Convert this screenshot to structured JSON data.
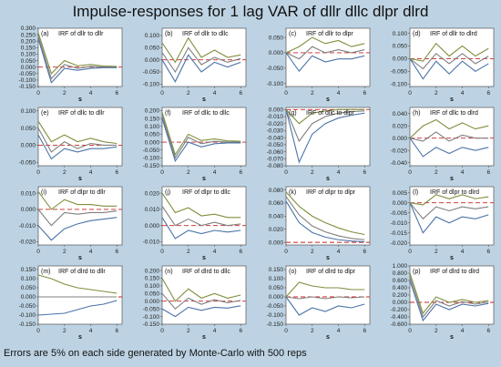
{
  "title": "Impulse-responses for 1 lag VAR of dllr dllc dlpr dlrd",
  "footnote": "Errors are 5% on each side generated by Monte-Carlo with 500 reps",
  "colors": {
    "background": "#bdd3e3",
    "plot_bg": "#ffffff",
    "irf": "#7f7f7f",
    "lower": "#4a73a8",
    "upper": "#7f8f3c",
    "zero": "#cc2222",
    "frame": "#555555"
  },
  "chart_data": [
    {
      "type": "line",
      "letter": "(a)",
      "title": "IRF of dllr to dllr",
      "xlabel": "s",
      "x": [
        0,
        1,
        2,
        3,
        4,
        5,
        6
      ],
      "yticks": [
        "0.300",
        "0.250",
        "0.200",
        "0.150",
        "0.100",
        "0.050",
        "0.000",
        "-0.050",
        "-0.100",
        "-0.150"
      ],
      "ylim": [
        -0.15,
        0.3
      ],
      "xticks": [
        "0",
        "2",
        "4",
        "6"
      ],
      "series": [
        {
          "name": "irf",
          "values": [
            0.24,
            -0.09,
            0.02,
            -0.01,
            0.005,
            0.0,
            0.0
          ]
        },
        {
          "name": "lower",
          "values": [
            0.22,
            -0.12,
            -0.01,
            -0.025,
            -0.01,
            -0.005,
            -0.005
          ]
        },
        {
          "name": "upper",
          "values": [
            0.265,
            -0.05,
            0.05,
            0.01,
            0.02,
            0.008,
            0.005
          ]
        }
      ]
    },
    {
      "type": "line",
      "letter": "(b)",
      "title": "IRF of dllr to dllc",
      "xlabel": "s",
      "x": [
        0,
        1,
        2,
        3,
        4,
        5,
        6
      ],
      "yticks": [
        "0.100",
        "0.050",
        "0.000",
        "-0.050",
        "-0.100"
      ],
      "ylim": [
        -0.11,
        0.13
      ],
      "xticks": [
        "0",
        "2",
        "4",
        "6"
      ],
      "series": [
        {
          "name": "irf",
          "values": [
            0.03,
            -0.05,
            0.05,
            -0.02,
            0.01,
            -0.01,
            0.005
          ]
        },
        {
          "name": "lower",
          "values": [
            0.0,
            -0.09,
            0.02,
            -0.05,
            -0.01,
            -0.03,
            -0.01
          ]
        },
        {
          "name": "upper",
          "values": [
            0.07,
            -0.01,
            0.09,
            0.01,
            0.04,
            0.01,
            0.02
          ]
        }
      ]
    },
    {
      "type": "line",
      "letter": "(c)",
      "title": "IRF of dllr to dlpr",
      "xlabel": "s",
      "x": [
        0,
        1,
        2,
        3,
        4,
        5,
        6
      ],
      "yticks": [
        "0.050",
        "0.000",
        "-0.050",
        "-0.100"
      ],
      "ylim": [
        -0.11,
        0.08
      ],
      "xticks": [
        "0",
        "2",
        "4",
        "6"
      ],
      "series": [
        {
          "name": "irf",
          "values": [
            0.0,
            -0.02,
            0.02,
            0.0,
            0.01,
            0.0,
            0.01
          ]
        },
        {
          "name": "lower",
          "values": [
            0.0,
            -0.06,
            -0.01,
            -0.03,
            -0.02,
            -0.02,
            -0.01
          ]
        },
        {
          "name": "upper",
          "values": [
            0.0,
            0.02,
            0.05,
            0.03,
            0.04,
            0.02,
            0.03
          ]
        }
      ]
    },
    {
      "type": "line",
      "letter": "(d)",
      "title": "IRF of dllr to dlrd",
      "xlabel": "s",
      "x": [
        0,
        1,
        2,
        3,
        4,
        5,
        6
      ],
      "yticks": [
        "0.100",
        "0.050",
        "0.000",
        "-0.050",
        "-0.100"
      ],
      "ylim": [
        -0.11,
        0.12
      ],
      "xticks": [
        "0",
        "2",
        "4",
        "6"
      ],
      "series": [
        {
          "name": "irf",
          "values": [
            0.0,
            -0.04,
            0.02,
            -0.02,
            0.02,
            -0.02,
            0.01
          ]
        },
        {
          "name": "lower",
          "values": [
            0.0,
            -0.08,
            -0.01,
            -0.06,
            -0.01,
            -0.05,
            -0.02
          ]
        },
        {
          "name": "upper",
          "values": [
            0.0,
            -0.01,
            0.06,
            0.01,
            0.05,
            0.01,
            0.04
          ]
        }
      ]
    },
    {
      "type": "line",
      "letter": "(e)",
      "title": "IRF of dllc to dllr",
      "xlabel": "s",
      "x": [
        0,
        1,
        2,
        3,
        4,
        5,
        6
      ],
      "yticks": [
        "0.100",
        "0.050",
        "0.000",
        "-0.050"
      ],
      "ylim": [
        -0.06,
        0.11
      ],
      "xticks": [
        "0",
        "2",
        "4",
        "6"
      ],
      "series": [
        {
          "name": "irf",
          "values": [
            0.05,
            -0.02,
            0.01,
            -0.01,
            0.005,
            0.0,
            0.0
          ]
        },
        {
          "name": "lower",
          "values": [
            0.03,
            -0.04,
            -0.01,
            -0.02,
            -0.01,
            -0.01,
            -0.005
          ]
        },
        {
          "name": "upper",
          "values": [
            0.07,
            0.01,
            0.03,
            0.01,
            0.02,
            0.01,
            0.005
          ]
        }
      ]
    },
    {
      "type": "line",
      "letter": "(f)",
      "title": "IRF of dllc to dllc",
      "xlabel": "s",
      "x": [
        0,
        1,
        2,
        3,
        4,
        5,
        6
      ],
      "yticks": [
        "0.200",
        "0.150",
        "0.100",
        "0.050",
        "0.000",
        "-0.050",
        "-0.100",
        "-0.150"
      ],
      "ylim": [
        -0.15,
        0.22
      ],
      "xticks": [
        "0",
        "2",
        "4",
        "6"
      ],
      "series": [
        {
          "name": "irf",
          "values": [
            0.17,
            -0.1,
            0.03,
            -0.01,
            0.005,
            0.0,
            0.0
          ]
        },
        {
          "name": "lower",
          "values": [
            0.15,
            -0.12,
            0.0,
            -0.03,
            -0.01,
            -0.005,
            -0.005
          ]
        },
        {
          "name": "upper",
          "values": [
            0.19,
            -0.08,
            0.05,
            0.01,
            0.02,
            0.008,
            0.005
          ]
        }
      ]
    },
    {
      "type": "line",
      "letter": "(g)",
      "title": "IRF of dllc to dlpr",
      "xlabel": "s",
      "x": [
        0,
        1,
        2,
        3,
        4,
        5,
        6
      ],
      "yticks": [
        "0.000",
        "-0.010",
        "-0.020",
        "-0.030",
        "-0.040",
        "-0.050",
        "-0.060",
        "-0.070",
        "-0.080"
      ],
      "ylim": [
        -0.08,
        0.003
      ],
      "xticks": [
        "0",
        "2",
        "4",
        "6"
      ],
      "series": [
        {
          "name": "irf",
          "values": [
            0.0,
            -0.045,
            -0.02,
            -0.01,
            -0.005,
            -0.003,
            -0.002
          ]
        },
        {
          "name": "lower",
          "values": [
            0.0,
            -0.075,
            -0.035,
            -0.02,
            -0.012,
            -0.008,
            -0.005
          ]
        },
        {
          "name": "upper",
          "values": [
            0.0,
            -0.02,
            -0.005,
            -0.002,
            0.0,
            0.0,
            0.0
          ]
        }
      ]
    },
    {
      "type": "line",
      "letter": "(h)",
      "title": "IRF of dllc to dlrd",
      "xlabel": "s",
      "x": [
        0,
        1,
        2,
        3,
        4,
        5,
        6
      ],
      "yticks": [
        "0.040",
        "0.020",
        "0.000",
        "-0.020",
        "-0.040"
      ],
      "ylim": [
        -0.045,
        0.05
      ],
      "xticks": [
        "0",
        "2",
        "4",
        "6"
      ],
      "series": [
        {
          "name": "irf",
          "values": [
            0.0,
            -0.005,
            0.01,
            -0.005,
            0.005,
            0.0,
            0.0
          ]
        },
        {
          "name": "lower",
          "values": [
            0.0,
            -0.03,
            -0.015,
            -0.025,
            -0.015,
            -0.02,
            -0.015
          ]
        },
        {
          "name": "upper",
          "values": [
            0.0,
            0.02,
            0.03,
            0.015,
            0.025,
            0.015,
            0.02
          ]
        }
      ]
    },
    {
      "type": "line",
      "letter": "(i)",
      "title": "IRF of dlpr to dllr",
      "xlabel": "s",
      "x": [
        0,
        1,
        2,
        3,
        4,
        5,
        6
      ],
      "yticks": [
        "0.010",
        "0.000",
        "-0.010",
        "-0.020"
      ],
      "ylim": [
        -0.022,
        0.014
      ],
      "xticks": [
        "0",
        "2",
        "4",
        "6"
      ],
      "series": [
        {
          "name": "irf",
          "values": [
            0.0,
            -0.01,
            -0.002,
            -0.003,
            -0.002,
            -0.002,
            -0.001
          ]
        },
        {
          "name": "lower",
          "values": [
            -0.01,
            -0.019,
            -0.012,
            -0.009,
            -0.007,
            -0.006,
            -0.005
          ]
        },
        {
          "name": "upper",
          "values": [
            0.011,
            0.0,
            0.006,
            0.003,
            0.003,
            0.002,
            0.002
          ]
        }
      ]
    },
    {
      "type": "line",
      "letter": "(j)",
      "title": "IRF of dlpr to dllc",
      "xlabel": "s",
      "x": [
        0,
        1,
        2,
        3,
        4,
        5,
        6
      ],
      "yticks": [
        "0.020",
        "0.010",
        "0.000",
        "-0.010"
      ],
      "ylim": [
        -0.012,
        0.024
      ],
      "xticks": [
        "0",
        "2",
        "4",
        "6"
      ],
      "series": [
        {
          "name": "irf",
          "values": [
            0.012,
            0.0,
            0.004,
            0.0,
            0.002,
            0.0,
            0.001
          ]
        },
        {
          "name": "lower",
          "values": [
            0.005,
            -0.008,
            -0.003,
            -0.005,
            -0.003,
            -0.004,
            -0.003
          ]
        },
        {
          "name": "upper",
          "values": [
            0.02,
            0.008,
            0.011,
            0.006,
            0.007,
            0.005,
            0.005
          ]
        }
      ]
    },
    {
      "type": "line",
      "letter": "(k)",
      "title": "IRF of dlpr to dlpr",
      "xlabel": "s",
      "x": [
        0,
        1,
        2,
        3,
        4,
        5,
        6
      ],
      "yticks": [
        "0.080",
        "0.060",
        "0.040",
        "0.020",
        "0.000"
      ],
      "ylim": [
        -0.004,
        0.085
      ],
      "xticks": [
        "0",
        "2",
        "4",
        "6"
      ],
      "series": [
        {
          "name": "irf",
          "values": [
            0.07,
            0.042,
            0.025,
            0.016,
            0.01,
            0.006,
            0.004
          ]
        },
        {
          "name": "lower",
          "values": [
            0.063,
            0.03,
            0.015,
            0.008,
            0.004,
            0.002,
            0.001
          ]
        },
        {
          "name": "upper",
          "values": [
            0.077,
            0.055,
            0.04,
            0.03,
            0.022,
            0.016,
            0.012
          ]
        }
      ]
    },
    {
      "type": "line",
      "letter": "(l)",
      "title": "IRF of dlpr to dlrd",
      "xlabel": "s",
      "x": [
        0,
        1,
        2,
        3,
        4,
        5,
        6
      ],
      "yticks": [
        "0.005",
        "0.000",
        "-0.005",
        "-0.010",
        "-0.015",
        "-0.020"
      ],
      "ylim": [
        -0.021,
        0.008
      ],
      "xticks": [
        "0",
        "2",
        "4",
        "6"
      ],
      "series": [
        {
          "name": "irf",
          "values": [
            0.0,
            -0.008,
            -0.002,
            -0.004,
            -0.002,
            -0.003,
            -0.002
          ]
        },
        {
          "name": "lower",
          "values": [
            0.0,
            -0.015,
            -0.007,
            -0.01,
            -0.007,
            -0.008,
            -0.006
          ]
        },
        {
          "name": "upper",
          "values": [
            0.0,
            -0.001,
            0.004,
            0.002,
            0.004,
            0.002,
            0.003
          ]
        }
      ]
    },
    {
      "type": "line",
      "letter": "(m)",
      "title": "IRF of dlrd to dllr",
      "xlabel": "s",
      "x": [
        0,
        1,
        2,
        3,
        4,
        5,
        6
      ],
      "yticks": [
        "0.150",
        "0.100",
        "0.050",
        "0.000",
        "-0.050",
        "-0.100",
        "-0.150"
      ],
      "ylim": [
        -0.15,
        0.17
      ],
      "xticks": [
        "0",
        "2",
        "4",
        "6"
      ],
      "series": [
        {
          "name": "irf",
          "values": [
            0.0,
            0.0,
            0.0,
            0.0,
            0.0,
            0.0,
            0.0
          ]
        },
        {
          "name": "lower",
          "values": [
            -0.1,
            -0.095,
            -0.09,
            -0.07,
            -0.05,
            -0.04,
            -0.02
          ]
        },
        {
          "name": "upper",
          "values": [
            0.12,
            0.1,
            0.07,
            0.05,
            0.04,
            0.03,
            0.02
          ]
        }
      ]
    },
    {
      "type": "line",
      "letter": "(n)",
      "title": "IRF of dlrd to dllc",
      "xlabel": "s",
      "x": [
        0,
        1,
        2,
        3,
        4,
        5,
        6
      ],
      "yticks": [
        "0.200",
        "0.150",
        "0.100",
        "0.050",
        "0.000",
        "-0.050",
        "-0.100",
        "-0.150"
      ],
      "ylim": [
        -0.15,
        0.23
      ],
      "xticks": [
        "0",
        "2",
        "4",
        "6"
      ],
      "series": [
        {
          "name": "irf",
          "values": [
            0.05,
            -0.05,
            0.02,
            -0.02,
            0.01,
            -0.01,
            0.005
          ]
        },
        {
          "name": "lower",
          "values": [
            -0.05,
            -0.1,
            -0.04,
            -0.06,
            -0.04,
            -0.045,
            -0.03
          ]
        },
        {
          "name": "upper",
          "values": [
            0.15,
            0.0,
            0.08,
            0.02,
            0.05,
            0.02,
            0.04
          ]
        }
      ]
    },
    {
      "type": "line",
      "letter": "(o)",
      "title": "IRF of dlrd to dlpr",
      "xlabel": "s",
      "x": [
        0,
        1,
        2,
        3,
        4,
        5,
        6
      ],
      "yticks": [
        "0.150",
        "0.100",
        "0.050",
        "0.000",
        "-0.050",
        "-0.100",
        "-0.150"
      ],
      "ylim": [
        -0.15,
        0.17
      ],
      "xticks": [
        "0",
        "2",
        "4",
        "6"
      ],
      "series": [
        {
          "name": "irf",
          "values": [
            0.0,
            -0.01,
            0.0,
            -0.01,
            0.0,
            -0.005,
            0.0
          ]
        },
        {
          "name": "lower",
          "values": [
            0.0,
            -0.1,
            -0.06,
            -0.08,
            -0.05,
            -0.06,
            -0.04
          ]
        },
        {
          "name": "upper",
          "values": [
            0.0,
            0.08,
            0.06,
            0.05,
            0.05,
            0.04,
            0.04
          ]
        }
      ]
    },
    {
      "type": "line",
      "letter": "(p)",
      "title": "IRF of dlrd to dlrd",
      "xlabel": "s",
      "x": [
        0,
        1,
        2,
        3,
        4,
        5,
        6
      ],
      "yticks": [
        "1.000",
        "0.800",
        "0.600",
        "0.400",
        "0.200",
        "0.000",
        "-0.200",
        "-0.400",
        "-0.600"
      ],
      "ylim": [
        -0.6,
        1.0
      ],
      "xticks": [
        "0",
        "2",
        "4",
        "6"
      ],
      "series": [
        {
          "name": "irf",
          "values": [
            0.7,
            -0.4,
            0.05,
            -0.1,
            0.02,
            -0.05,
            0.01
          ]
        },
        {
          "name": "lower",
          "values": [
            0.6,
            -0.5,
            -0.05,
            -0.2,
            -0.05,
            -0.1,
            -0.03
          ]
        },
        {
          "name": "upper",
          "values": [
            0.8,
            -0.3,
            0.15,
            0.0,
            0.08,
            0.0,
            0.05
          ]
        }
      ]
    }
  ]
}
